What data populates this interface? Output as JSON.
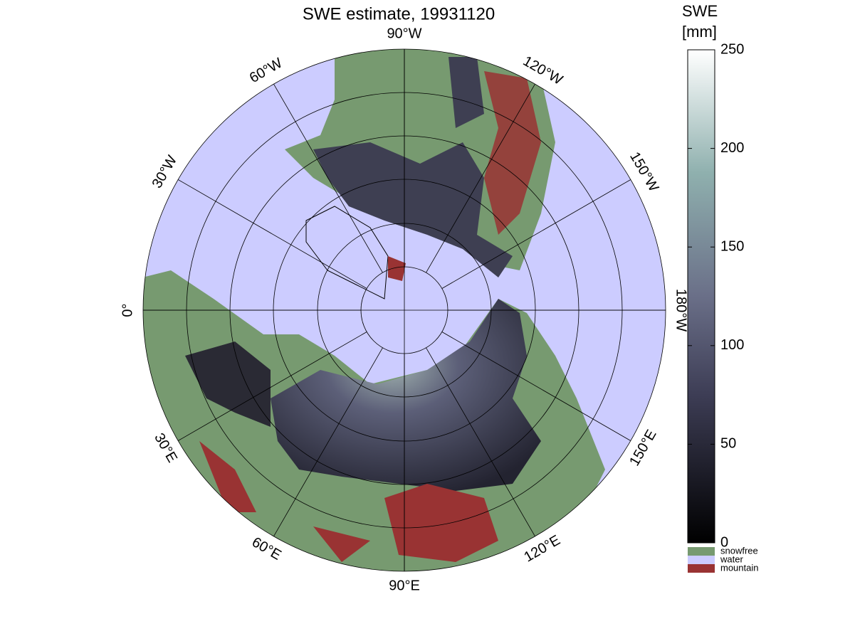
{
  "title": "SWE estimate, 19931120",
  "meridian_labels": [
    "0°",
    "30°E",
    "60°E",
    "90°E",
    "120°E",
    "150°E",
    "180°W",
    "150°W",
    "120°W",
    "90°W",
    "60°W",
    "30°W"
  ],
  "colorbar": {
    "title": [
      "SWE",
      "[mm]"
    ],
    "lim": [
      0,
      250
    ],
    "ticks": [
      0,
      50,
      100,
      150,
      200,
      250
    ]
  },
  "legend": [
    {
      "label": "snowfree",
      "color": "#779a70"
    },
    {
      "label": "water",
      "color": "#ccccff"
    },
    {
      "label": "mountain",
      "color": "#993333"
    }
  ]
}
